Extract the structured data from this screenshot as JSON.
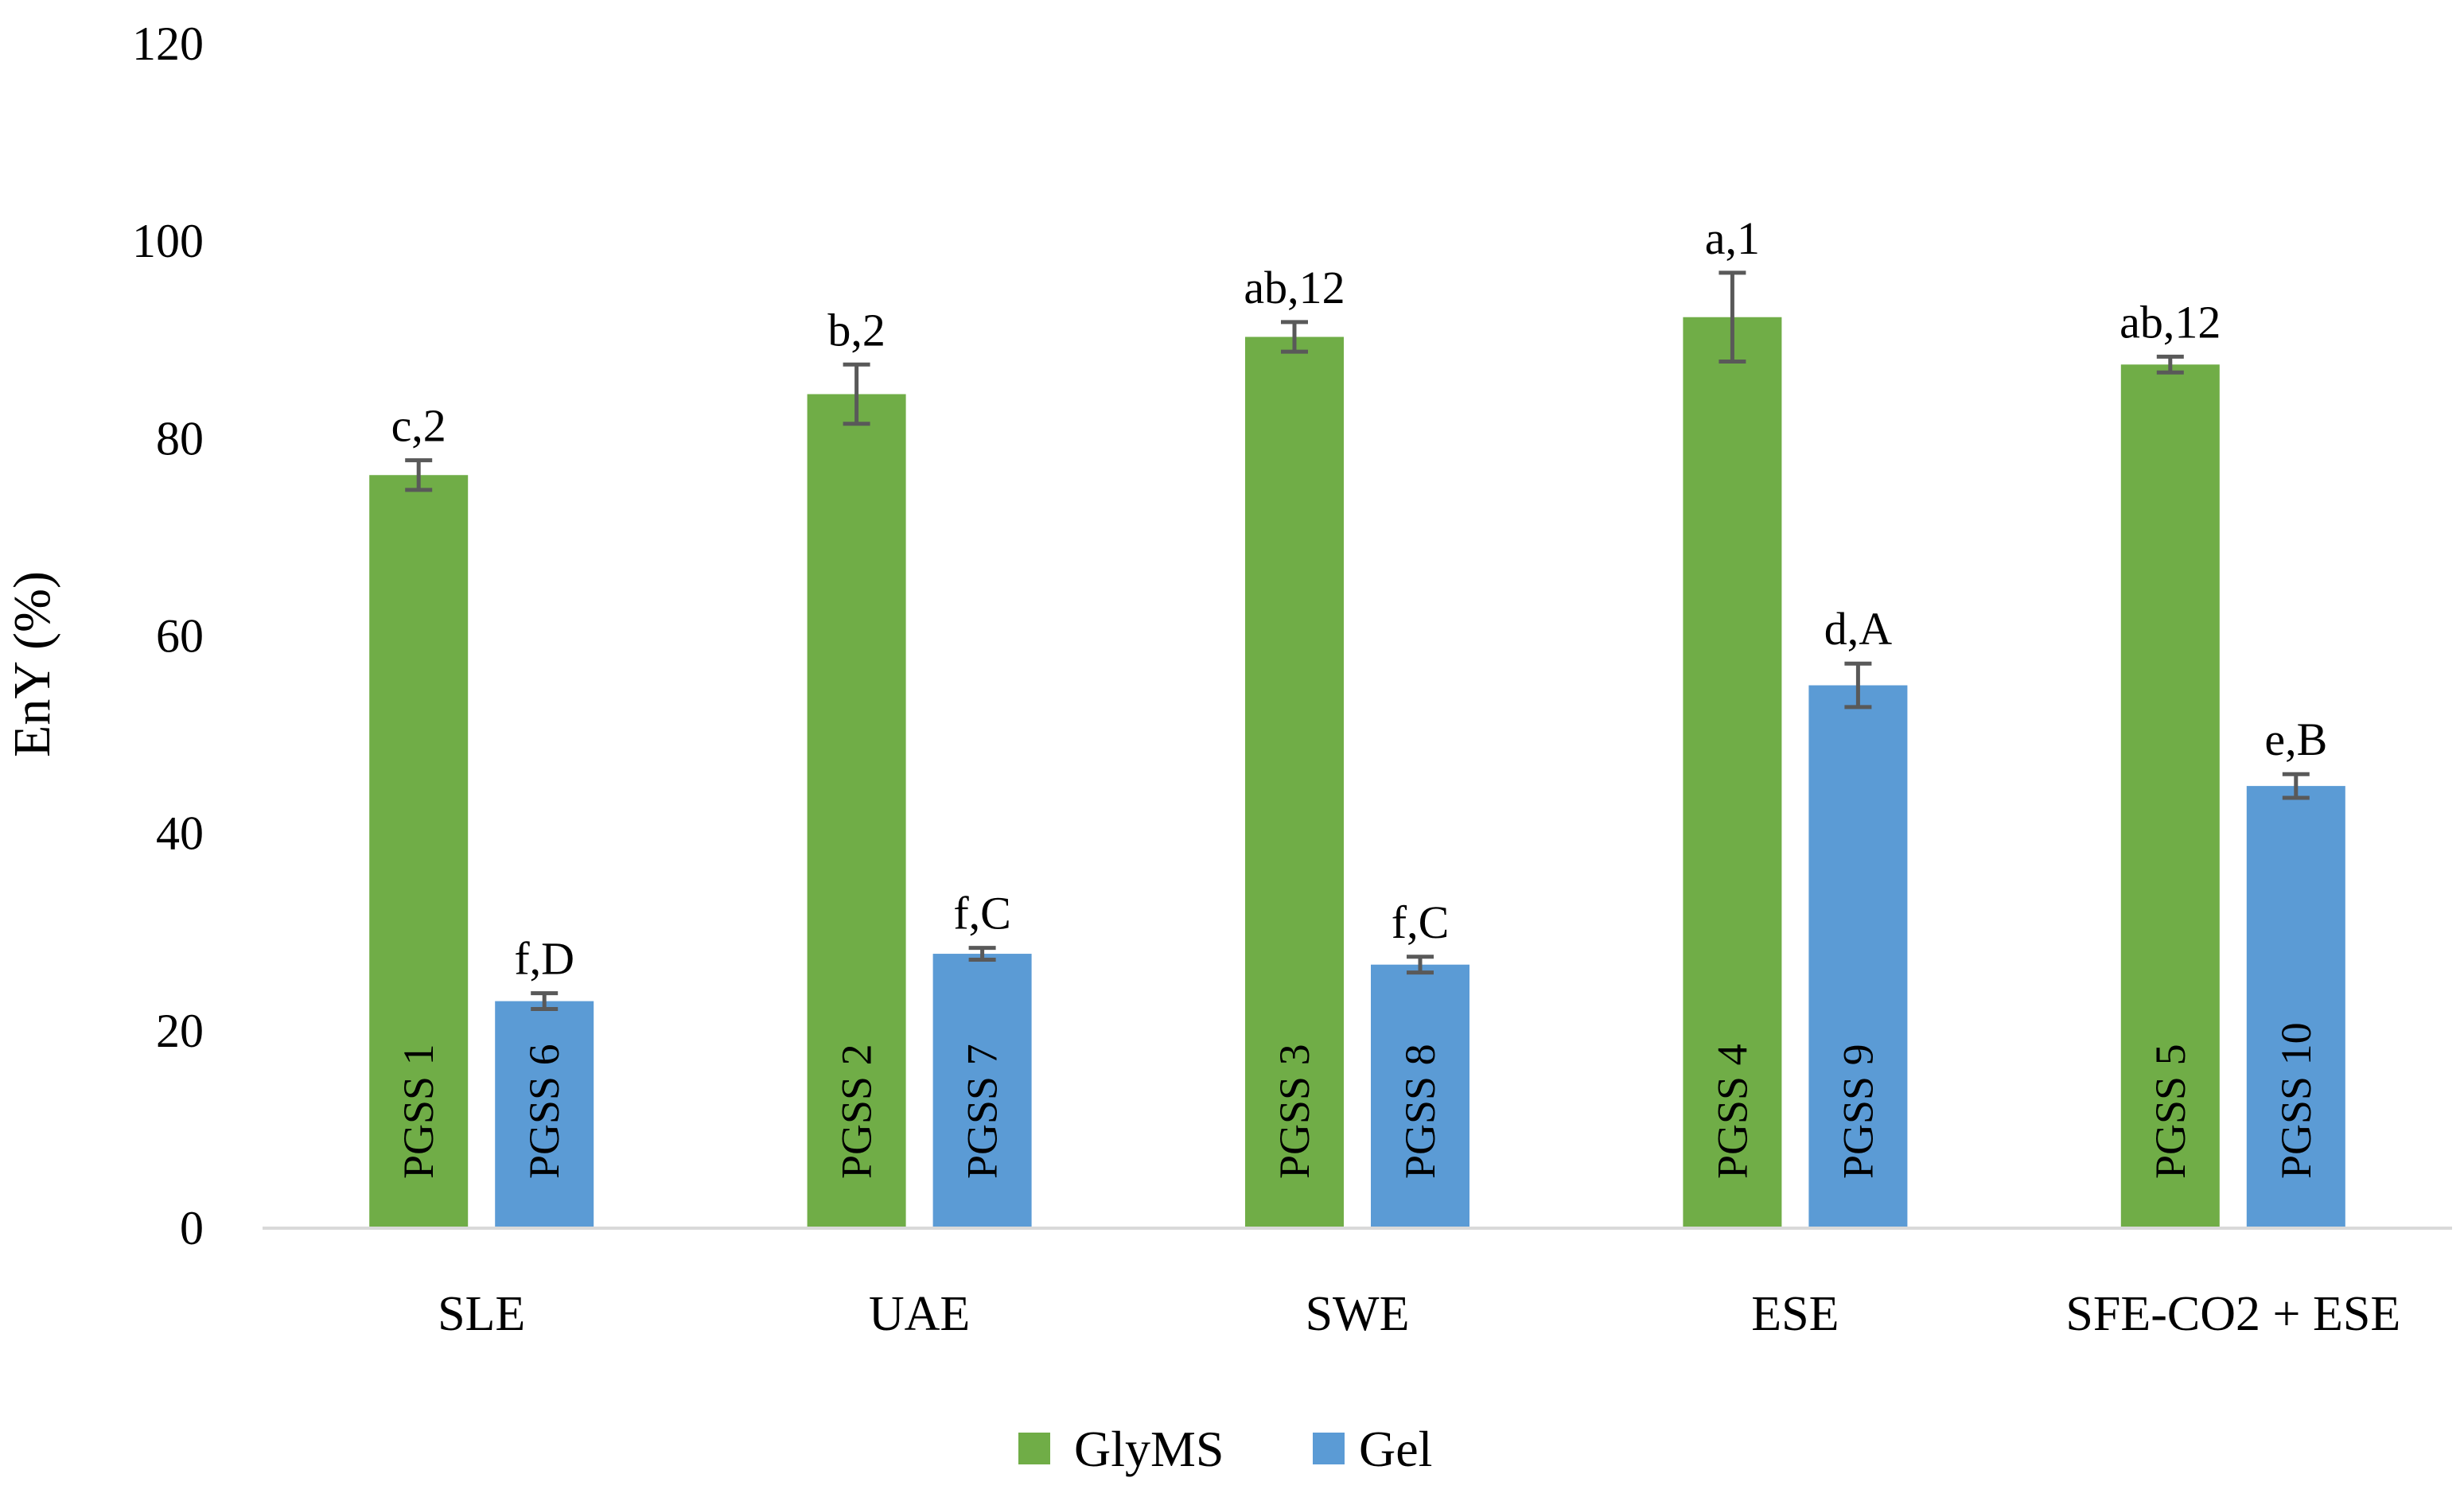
{
  "chart_data": {
    "type": "bar",
    "ylabel": "EnY (%)",
    "xlabel": "",
    "ylim": [
      0,
      120
    ],
    "yticks": [
      0,
      20,
      40,
      60,
      80,
      100,
      120
    ],
    "grid": false,
    "legend_position": "bottom",
    "categories": [
      "SLE",
      "UAE",
      "SWE",
      "ESE",
      "SFE-CO2 + ESE"
    ],
    "series": [
      {
        "name": "GlyMS",
        "color": "#70AD47",
        "values": [
          76.3,
          84.5,
          90.3,
          92.3,
          87.5
        ],
        "errors": [
          1.5,
          3.0,
          1.5,
          4.5,
          0.8
        ],
        "bar_labels": [
          "PGSS 1",
          "PGSS 2",
          "PGSS 3",
          "PGSS 4",
          "PGSS 5"
        ],
        "annotations": [
          "c,2",
          "b,2",
          "ab,12",
          "a,1",
          "ab,12"
        ]
      },
      {
        "name": "Gel",
        "color": "#5B9BD5",
        "values": [
          23.0,
          27.8,
          26.7,
          55.0,
          44.8
        ],
        "errors": [
          0.8,
          0.6,
          0.8,
          2.2,
          1.2
        ],
        "bar_labels": [
          "PGSS 6",
          "PGSS 7",
          "PGSS 8",
          "PGSS 9",
          "PGSS 10"
        ],
        "annotations": [
          "f,D",
          "f,C",
          "f,C",
          "d,A",
          "e,B"
        ]
      }
    ]
  }
}
